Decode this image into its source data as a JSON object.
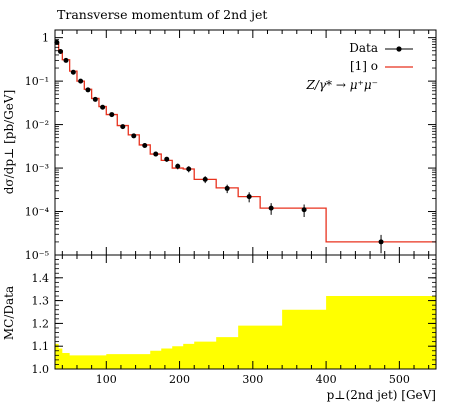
{
  "chart_data": [
    {
      "type": "line",
      "title": "Transverse momentum of 2nd jet",
      "ylabel": "dσ/dp⊥ [pb/GeV]",
      "xlabel": "p⊥(2nd jet) [GeV]",
      "yscale": "log",
      "ylim": [
        1e-05,
        1.5
      ],
      "xlim": [
        30,
        550
      ],
      "yticks": [
        {
          "value": 1,
          "label": "1"
        },
        {
          "value": 0.1,
          "label": "10⁻¹"
        },
        {
          "value": 0.01,
          "label": "10⁻²"
        },
        {
          "value": 0.001,
          "label": "10⁻³"
        },
        {
          "value": 0.0001,
          "label": "10⁻⁴"
        },
        {
          "value": 1e-05,
          "label": "10⁻⁵"
        }
      ],
      "legend": {
        "placement": "top-right",
        "entries": [
          "Data",
          "[1] o"
        ],
        "process": "Z/γ* → μ⁺μ⁻"
      },
      "series": [
        {
          "name": "[1] o",
          "kind": "histogram",
          "color": "#e8321e",
          "bin_edges": [
            30,
            35,
            40,
            50,
            60,
            70,
            80,
            90,
            100,
            115,
            130,
            145,
            160,
            175,
            190,
            205,
            220,
            250,
            280,
            310,
            340,
            400,
            550
          ],
          "values": [
            0.75,
            0.5,
            0.31,
            0.17,
            0.1,
            0.065,
            0.04,
            0.026,
            0.017,
            0.0095,
            0.0058,
            0.0034,
            0.0021,
            0.0015,
            0.001,
            0.00095,
            0.00055,
            0.00035,
            0.00022,
            0.00012,
            0.00012,
            2e-05
          ]
        },
        {
          "name": "Data",
          "kind": "points",
          "color": "#000000",
          "x": [
            32.5,
            37.5,
            45,
            55,
            65,
            75,
            85,
            95,
            107.5,
            122.5,
            137.5,
            152.5,
            167.5,
            182.5,
            197.5,
            212.5,
            235,
            265,
            295,
            325,
            370,
            475
          ],
          "y": [
            0.78,
            0.48,
            0.3,
            0.16,
            0.1,
            0.063,
            0.038,
            0.025,
            0.017,
            0.009,
            0.0055,
            0.0033,
            0.0021,
            0.0016,
            0.0011,
            0.00095,
            0.00055,
            0.00034,
            0.00022,
            0.00012,
            0.00011,
            2e-05
          ],
          "yerr_rel": [
            0.06,
            0.06,
            0.06,
            0.06,
            0.06,
            0.06,
            0.07,
            0.07,
            0.07,
            0.08,
            0.09,
            0.1,
            0.12,
            0.13,
            0.15,
            0.16,
            0.18,
            0.22,
            0.26,
            0.3,
            0.32,
            0.45
          ]
        }
      ]
    },
    {
      "type": "area",
      "ylabel": "MC/Data",
      "xlabel": "p⊥(2nd jet) [GeV]",
      "ylim": [
        1.0,
        1.5
      ],
      "xlim": [
        30,
        550
      ],
      "xticks": [
        100,
        200,
        300,
        400,
        500
      ],
      "yticks": [
        1.0,
        1.1,
        1.2,
        1.3,
        1.4
      ],
      "ytick_labels": [
        "1.0",
        "1.1",
        "1.2",
        "1.3",
        "1.4"
      ],
      "series": [
        {
          "name": "MC/Data band",
          "kind": "histogram-band",
          "color": "#ffff00",
          "bin_edges": [
            30,
            35,
            40,
            50,
            60,
            70,
            80,
            90,
            100,
            115,
            130,
            145,
            160,
            175,
            190,
            205,
            220,
            250,
            280,
            310,
            340,
            400,
            550
          ],
          "values": [
            1.11,
            1.09,
            1.07,
            1.06,
            1.06,
            1.06,
            1.06,
            1.06,
            1.065,
            1.065,
            1.065,
            1.065,
            1.08,
            1.09,
            1.1,
            1.11,
            1.12,
            1.14,
            1.19,
            1.19,
            1.26,
            1.32
          ]
        }
      ]
    }
  ]
}
